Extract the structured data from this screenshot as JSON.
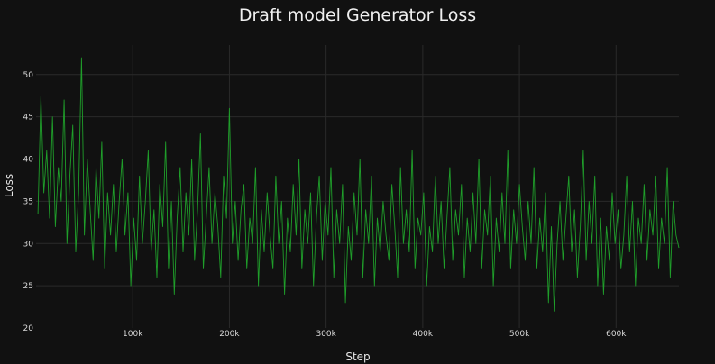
{
  "chart_data": {
    "type": "line",
    "title": "Draft model Generator Loss",
    "xlabel": "Step",
    "ylabel": "Loss",
    "xlim": [
      0,
      665000
    ],
    "ylim": [
      20,
      53.5
    ],
    "x_ticks": [
      {
        "value": 100000,
        "label": "100k"
      },
      {
        "value": 200000,
        "label": "200k"
      },
      {
        "value": 300000,
        "label": "300k"
      },
      {
        "value": 400000,
        "label": "400k"
      },
      {
        "value": 500000,
        "label": "500k"
      },
      {
        "value": 600000,
        "label": "600k"
      }
    ],
    "y_ticks": [
      {
        "value": 20,
        "label": "20"
      },
      {
        "value": 25,
        "label": "25"
      },
      {
        "value": 30,
        "label": "30"
      },
      {
        "value": 35,
        "label": "35"
      },
      {
        "value": 40,
        "label": "40"
      },
      {
        "value": 45,
        "label": "45"
      },
      {
        "value": 50,
        "label": "50"
      }
    ],
    "grid": true,
    "line_color": "#1f9e2a",
    "series": [
      {
        "values": [
          [
            2000,
            33.5
          ],
          [
            5000,
            47.5
          ],
          [
            8000,
            36
          ],
          [
            11000,
            41
          ],
          [
            14000,
            33
          ],
          [
            17000,
            45
          ],
          [
            20000,
            32
          ],
          [
            23000,
            39
          ],
          [
            26000,
            35
          ],
          [
            29000,
            47
          ],
          [
            32000,
            30
          ],
          [
            35000,
            38
          ],
          [
            38000,
            44
          ],
          [
            41000,
            29
          ],
          [
            44000,
            36
          ],
          [
            47000,
            52
          ],
          [
            50000,
            31
          ],
          [
            53000,
            40
          ],
          [
            56000,
            34
          ],
          [
            59000,
            28
          ],
          [
            62000,
            39
          ],
          [
            65000,
            33
          ],
          [
            68000,
            42
          ],
          [
            71000,
            27
          ],
          [
            74000,
            36
          ],
          [
            77000,
            31
          ],
          [
            80000,
            37
          ],
          [
            83000,
            29
          ],
          [
            86000,
            35
          ],
          [
            89000,
            40
          ],
          [
            92000,
            31
          ],
          [
            95000,
            36
          ],
          [
            98000,
            25
          ],
          [
            101000,
            33
          ],
          [
            104000,
            28
          ],
          [
            107000,
            38
          ],
          [
            110000,
            30
          ],
          [
            113000,
            35
          ],
          [
            116000,
            41
          ],
          [
            119000,
            29
          ],
          [
            122000,
            34
          ],
          [
            125000,
            26
          ],
          [
            128000,
            37
          ],
          [
            131000,
            32
          ],
          [
            134000,
            42
          ],
          [
            137000,
            27
          ],
          [
            140000,
            35
          ],
          [
            143000,
            24
          ],
          [
            146000,
            33
          ],
          [
            149000,
            39
          ],
          [
            152000,
            29
          ],
          [
            155000,
            36
          ],
          [
            158000,
            31
          ],
          [
            161000,
            40
          ],
          [
            164000,
            28
          ],
          [
            167000,
            34
          ],
          [
            170000,
            43
          ],
          [
            173000,
            27
          ],
          [
            176000,
            33
          ],
          [
            179000,
            39
          ],
          [
            182000,
            30
          ],
          [
            185000,
            36
          ],
          [
            188000,
            32
          ],
          [
            191000,
            26
          ],
          [
            194000,
            38
          ],
          [
            197000,
            33
          ],
          [
            200000,
            46
          ],
          [
            203000,
            30
          ],
          [
            206000,
            35
          ],
          [
            209000,
            28
          ],
          [
            212000,
            34
          ],
          [
            215000,
            37
          ],
          [
            218000,
            27
          ],
          [
            221000,
            33
          ],
          [
            224000,
            30
          ],
          [
            227000,
            39
          ],
          [
            230000,
            25
          ],
          [
            233000,
            34
          ],
          [
            236000,
            29
          ],
          [
            239000,
            36
          ],
          [
            242000,
            31
          ],
          [
            245000,
            27
          ],
          [
            248000,
            38
          ],
          [
            251000,
            30
          ],
          [
            254000,
            35
          ],
          [
            257000,
            24
          ],
          [
            260000,
            33
          ],
          [
            263000,
            29
          ],
          [
            266000,
            37
          ],
          [
            269000,
            31
          ],
          [
            272000,
            40
          ],
          [
            275000,
            27
          ],
          [
            278000,
            34
          ],
          [
            281000,
            30
          ],
          [
            284000,
            36
          ],
          [
            287000,
            25
          ],
          [
            290000,
            33
          ],
          [
            293000,
            38
          ],
          [
            296000,
            28
          ],
          [
            299000,
            35
          ],
          [
            302000,
            31
          ],
          [
            305000,
            39
          ],
          [
            308000,
            26
          ],
          [
            311000,
            34
          ],
          [
            314000,
            30
          ],
          [
            317000,
            37
          ],
          [
            320000,
            23
          ],
          [
            323000,
            32
          ],
          [
            326000,
            28
          ],
          [
            329000,
            36
          ],
          [
            332000,
            31
          ],
          [
            335000,
            40
          ],
          [
            338000,
            26
          ],
          [
            341000,
            34
          ],
          [
            344000,
            30
          ],
          [
            347000,
            38
          ],
          [
            350000,
            25
          ],
          [
            353000,
            33
          ],
          [
            356000,
            29
          ],
          [
            359000,
            35
          ],
          [
            362000,
            31
          ],
          [
            365000,
            28
          ],
          [
            368000,
            37
          ],
          [
            371000,
            32
          ],
          [
            374000,
            26
          ],
          [
            377000,
            39
          ],
          [
            380000,
            30
          ],
          [
            383000,
            34
          ],
          [
            386000,
            29
          ],
          [
            389000,
            41
          ],
          [
            392000,
            27
          ],
          [
            395000,
            33
          ],
          [
            398000,
            31
          ],
          [
            401000,
            36
          ],
          [
            404000,
            25
          ],
          [
            407000,
            32
          ],
          [
            410000,
            29
          ],
          [
            413000,
            38
          ],
          [
            416000,
            30
          ],
          [
            419000,
            35
          ],
          [
            422000,
            27
          ],
          [
            425000,
            33
          ],
          [
            428000,
            39
          ],
          [
            431000,
            28
          ],
          [
            434000,
            34
          ],
          [
            437000,
            31
          ],
          [
            440000,
            37
          ],
          [
            443000,
            26
          ],
          [
            446000,
            33
          ],
          [
            449000,
            29
          ],
          [
            452000,
            36
          ],
          [
            455000,
            30
          ],
          [
            458000,
            40
          ],
          [
            461000,
            27
          ],
          [
            464000,
            34
          ],
          [
            467000,
            31
          ],
          [
            470000,
            38
          ],
          [
            473000,
            25
          ],
          [
            476000,
            33
          ],
          [
            479000,
            29
          ],
          [
            482000,
            36
          ],
          [
            485000,
            30
          ],
          [
            488000,
            41
          ],
          [
            491000,
            27
          ],
          [
            494000,
            34
          ],
          [
            497000,
            30
          ],
          [
            500000,
            37
          ],
          [
            503000,
            32
          ],
          [
            506000,
            28
          ],
          [
            509000,
            35
          ],
          [
            512000,
            30
          ],
          [
            515000,
            39
          ],
          [
            518000,
            27
          ],
          [
            521000,
            33
          ],
          [
            524000,
            29
          ],
          [
            527000,
            36
          ],
          [
            530000,
            23
          ],
          [
            533000,
            32
          ],
          [
            536000,
            22
          ],
          [
            539000,
            30
          ],
          [
            542000,
            35
          ],
          [
            545000,
            28
          ],
          [
            548000,
            33
          ],
          [
            551000,
            38
          ],
          [
            554000,
            29
          ],
          [
            557000,
            34
          ],
          [
            560000,
            26
          ],
          [
            563000,
            32
          ],
          [
            566000,
            41
          ],
          [
            569000,
            28
          ],
          [
            572000,
            35
          ],
          [
            575000,
            30
          ],
          [
            578000,
            38
          ],
          [
            581000,
            25
          ],
          [
            584000,
            33
          ],
          [
            587000,
            24
          ],
          [
            590000,
            32
          ],
          [
            593000,
            28
          ],
          [
            596000,
            36
          ],
          [
            599000,
            30
          ],
          [
            602000,
            34
          ],
          [
            605000,
            27
          ],
          [
            608000,
            31
          ],
          [
            611000,
            38
          ],
          [
            614000,
            29
          ],
          [
            617000,
            35
          ],
          [
            620000,
            25
          ],
          [
            623000,
            33
          ],
          [
            626000,
            30
          ],
          [
            629000,
            37
          ],
          [
            632000,
            28
          ],
          [
            635000,
            34
          ],
          [
            638000,
            31
          ],
          [
            641000,
            38
          ],
          [
            644000,
            27
          ],
          [
            647000,
            33
          ],
          [
            650000,
            30
          ],
          [
            653000,
            39
          ],
          [
            656000,
            26
          ],
          [
            659000,
            35
          ],
          [
            662000,
            31
          ],
          [
            665000,
            29.5
          ]
        ]
      }
    ]
  }
}
